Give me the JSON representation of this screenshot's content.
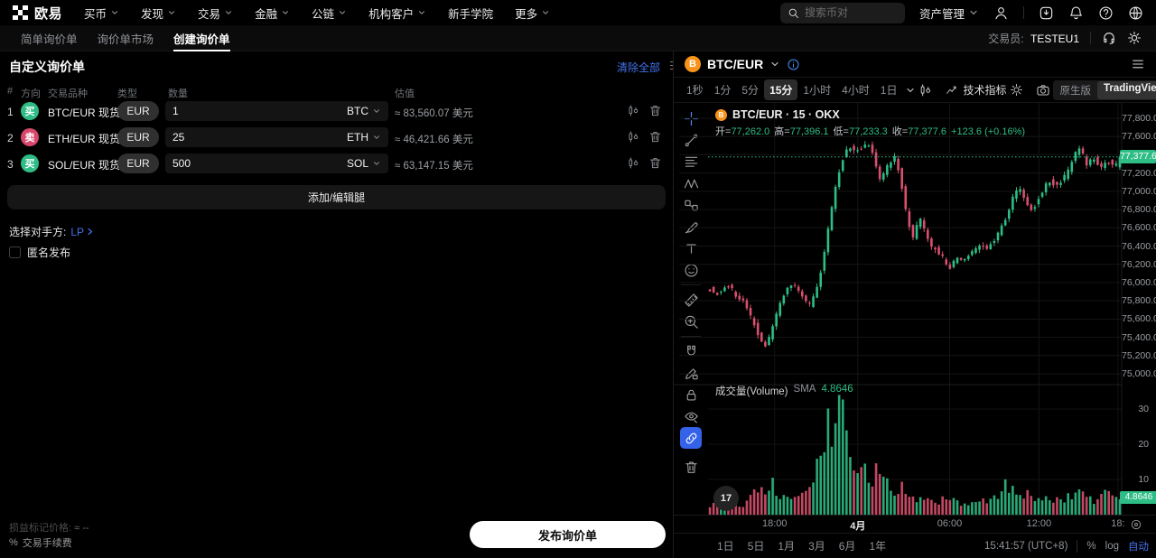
{
  "topnav": {
    "brand": "欧易",
    "menu": [
      {
        "label": "买币",
        "caret": true
      },
      {
        "label": "发现",
        "caret": true
      },
      {
        "label": "交易",
        "caret": true
      },
      {
        "label": "金融",
        "caret": true
      },
      {
        "label": "公链",
        "caret": true
      },
      {
        "label": "机构客户",
        "caret": true
      },
      {
        "label": "新手学院",
        "caret": false
      },
      {
        "label": "更多",
        "caret": true
      }
    ],
    "search_placeholder": "搜索币对",
    "assets_label": "资产管理",
    "icons": [
      "user-icon",
      "download-icon",
      "bell-icon",
      "help-icon",
      "globe-icon"
    ]
  },
  "subnav": {
    "tabs": [
      {
        "label": "简单询价单",
        "active": false
      },
      {
        "label": "询价单市场",
        "active": false
      },
      {
        "label": "创建询价单",
        "active": true
      }
    ],
    "trader_label": "交易员:",
    "trader_name": "TESTEU1",
    "icons": [
      "support-icon",
      "settings-icon"
    ]
  },
  "panel": {
    "title": "自定义询价单",
    "clear_all": "清除全部",
    "columns": {
      "index": "#",
      "side": "方向",
      "pair": "交易品种",
      "type": "类型",
      "qty": "数量",
      "value": "估值"
    },
    "rows": [
      {
        "index": "1",
        "side": "买",
        "direction": "buy",
        "pair": "BTC/EUR 现货",
        "type": "EUR",
        "qty": "1",
        "unit": "BTC",
        "value": "≈ 83,560.07 美元"
      },
      {
        "index": "2",
        "side": "卖",
        "direction": "sell",
        "pair": "ETH/EUR 现货",
        "type": "EUR",
        "qty": "25",
        "unit": "ETH",
        "value": "≈ 46,421.66 美元"
      },
      {
        "index": "3",
        "side": "买",
        "direction": "buy",
        "pair": "SOL/EUR 现货",
        "type": "EUR",
        "qty": "500",
        "unit": "SOL",
        "value": "≈ 63,147.15 美元"
      }
    ],
    "add_leg_label": "添加/编辑腿",
    "counterparty_label": "选择对手方:",
    "counterparty_value": "LP",
    "anonymous_label": "匿名发布",
    "anonymous_checked": false,
    "pnl_label": "损益标记价格:",
    "pnl_value": "≈ --",
    "fee_icon": "%",
    "fee_label": "交易手续费",
    "publish_label": "发布询价单"
  },
  "chart": {
    "pair": "BTC/EUR",
    "timeframes": [
      "1秒",
      "1分",
      "5分",
      "15分",
      "1小时",
      "4小时",
      "1日"
    ],
    "active_timeframe": "15分",
    "indicators_label": "技术指标",
    "native_label": "原生版",
    "tv_label": "TradingView",
    "legend_title": "BTC/EUR · 15 · OKX",
    "ohlc_text": {
      "o_label": "开=",
      "o": "77,262.0",
      "h_label": "高=",
      "h": "77,396.1",
      "l_label": "低=",
      "l": "77,233.3",
      "c_label": "收=",
      "c": "77,377.6",
      "chg": "+123.6 (+0.16%)"
    },
    "volume_label": "成交量(Volume)",
    "sma_label": "SMA",
    "sma_value": "4.8646",
    "last_price_label": "77,377.6",
    "vol_badge": "4.8646",
    "ranges": [
      "1日",
      "5日",
      "1月",
      "3月",
      "6月",
      "1年"
    ],
    "clock": "15:41:57 (UTC+8)",
    "percent_label": "%",
    "log_label": "log",
    "auto_label": "自动",
    "toolbar_icons": [
      "crosshair",
      "trend-line",
      "fib-retracement",
      "xabcd-pattern",
      "forecast",
      "brush",
      "text",
      "emoji",
      "ruler",
      "zoom-in",
      "magnet",
      "draw-lock",
      "lock",
      "eye",
      "link",
      "trash"
    ]
  },
  "chart_data": {
    "type": "candlestick",
    "symbol": "BTC/EUR",
    "interval": "15m",
    "exchange": "OKX",
    "ohlc": {
      "open": 77262.0,
      "high": 77396.1,
      "low": 77233.3,
      "close": 77377.6,
      "change": 123.6,
      "change_pct": 0.16
    },
    "last_price": 77377.6,
    "price_axis": {
      "min": 75000,
      "max": 77800,
      "step": 200,
      "ticks": [
        77800,
        77600,
        77200,
        77000,
        76800,
        76600,
        76400,
        76200,
        76000,
        75800,
        75600,
        75400,
        75200,
        75000
      ]
    },
    "volume_axis": {
      "ticks": [
        30,
        20,
        10
      ],
      "sma": 4.8646
    },
    "time_axis": [
      {
        "text": "18:00",
        "t": 0.161,
        "emph": false
      },
      {
        "text": "4月",
        "t": 0.362,
        "emph": true
      },
      {
        "text": "06:00",
        "t": 0.584,
        "emph": false
      },
      {
        "text": "12:00",
        "t": 0.8,
        "emph": false
      },
      {
        "text": "18:",
        "t": 0.991,
        "emph": false
      }
    ],
    "colors": {
      "up": "#2ebd85",
      "down": "#d8506d"
    },
    "candle_count": 112,
    "price_path": [
      [
        0,
        75950
      ],
      [
        0.03,
        75880
      ],
      [
        0.05,
        75990
      ],
      [
        0.07,
        75870
      ],
      [
        0.09,
        75780
      ],
      [
        0.11,
        75600
      ],
      [
        0.13,
        75380
      ],
      [
        0.145,
        75280
      ],
      [
        0.17,
        75650
      ],
      [
        0.19,
        75900
      ],
      [
        0.21,
        76000
      ],
      [
        0.23,
        75870
      ],
      [
        0.25,
        75750
      ],
      [
        0.27,
        75950
      ],
      [
        0.29,
        76450
      ],
      [
        0.31,
        77000
      ],
      [
        0.33,
        77350
      ],
      [
        0.345,
        77500
      ],
      [
        0.36,
        77420
      ],
      [
        0.375,
        77480
      ],
      [
        0.39,
        77530
      ],
      [
        0.405,
        77380
      ],
      [
        0.42,
        77120
      ],
      [
        0.44,
        77300
      ],
      [
        0.455,
        77380
      ],
      [
        0.47,
        77150
      ],
      [
        0.485,
        76700
      ],
      [
        0.5,
        76480
      ],
      [
        0.515,
        76720
      ],
      [
        0.53,
        76560
      ],
      [
        0.545,
        76400
      ],
      [
        0.56,
        76350
      ],
      [
        0.575,
        76250
      ],
      [
        0.59,
        76160
      ],
      [
        0.605,
        76280
      ],
      [
        0.62,
        76240
      ],
      [
        0.64,
        76330
      ],
      [
        0.66,
        76420
      ],
      [
        0.68,
        76380
      ],
      [
        0.7,
        76500
      ],
      [
        0.72,
        76660
      ],
      [
        0.74,
        76920
      ],
      [
        0.755,
        77060
      ],
      [
        0.775,
        76870
      ],
      [
        0.79,
        76790
      ],
      [
        0.81,
        76990
      ],
      [
        0.83,
        77120
      ],
      [
        0.85,
        77050
      ],
      [
        0.87,
        77180
      ],
      [
        0.89,
        77400
      ],
      [
        0.905,
        77460
      ],
      [
        0.92,
        77300
      ],
      [
        0.94,
        77360
      ],
      [
        0.955,
        77250
      ],
      [
        0.97,
        77330
      ],
      [
        0.985,
        77290
      ],
      [
        1,
        77377.6
      ]
    ],
    "volume_path": [
      [
        0,
        3
      ],
      [
        0.04,
        4
      ],
      [
        0.08,
        3
      ],
      [
        0.12,
        7
      ],
      [
        0.145,
        9
      ],
      [
        0.18,
        5
      ],
      [
        0.22,
        6
      ],
      [
        0.25,
        8
      ],
      [
        0.275,
        20
      ],
      [
        0.295,
        27
      ],
      [
        0.315,
        34
      ],
      [
        0.33,
        19
      ],
      [
        0.345,
        14
      ],
      [
        0.36,
        15
      ],
      [
        0.38,
        10
      ],
      [
        0.4,
        12
      ],
      [
        0.42,
        9
      ],
      [
        0.44,
        7
      ],
      [
        0.46,
        8
      ],
      [
        0.48,
        6
      ],
      [
        0.5,
        5
      ],
      [
        0.54,
        4
      ],
      [
        0.58,
        4
      ],
      [
        0.62,
        3
      ],
      [
        0.66,
        4
      ],
      [
        0.7,
        6
      ],
      [
        0.72,
        9
      ],
      [
        0.75,
        6
      ],
      [
        0.78,
        5
      ],
      [
        0.81,
        6
      ],
      [
        0.84,
        4
      ],
      [
        0.87,
        5
      ],
      [
        0.9,
        6
      ],
      [
        0.93,
        4
      ],
      [
        0.955,
        8
      ],
      [
        0.97,
        6
      ],
      [
        1,
        4.9
      ]
    ]
  }
}
